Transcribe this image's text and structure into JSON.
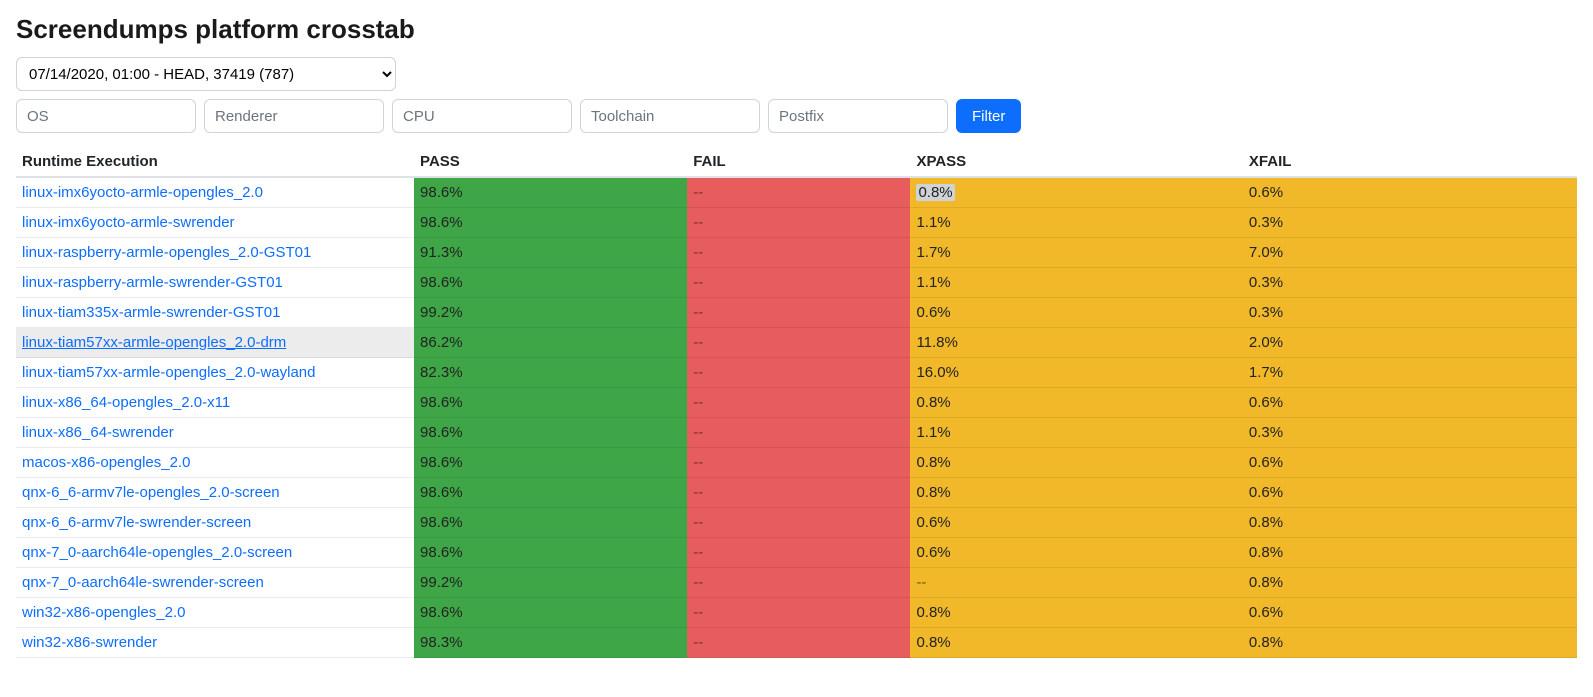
{
  "title": "Screendumps platform crosstab",
  "colors": {
    "pass_bg": "#3fa648",
    "fail_bg": "#e75d5d",
    "xpass_bg": "#f1b92a",
    "xfail_bg": "#f1b92a",
    "link": "#0d6efd",
    "filter_btn_bg": "#0d6efd",
    "text_on_color": "#222222",
    "dash_on_color": "#7a2e2e"
  },
  "build_select": {
    "selected": "07/14/2020, 01:00 - HEAD, 37419 (787)"
  },
  "filters": {
    "os": "",
    "renderer": "",
    "cpu": "",
    "toolchain": "",
    "postfix": ""
  },
  "placeholders": {
    "os": "OS",
    "renderer": "Renderer",
    "cpu": "CPU",
    "toolchain": "Toolchain",
    "postfix": "Postfix"
  },
  "filter_button_label": "Filter",
  "table": {
    "columns": [
      "Runtime Execution",
      "PASS",
      "FAIL",
      "XPASS",
      "XFAIL"
    ],
    "col_bg_keys": [
      null,
      "pass_bg",
      "fail_bg",
      "xpass_bg",
      "xfail_bg"
    ],
    "hovered_row_index": 5,
    "selected_cell": {
      "row": 0,
      "col": 3
    },
    "rows": [
      {
        "runtime": "linux-imx6yocto-armle-opengles_2.0",
        "pass": "98.6%",
        "fail": "--",
        "xpass": "0.8%",
        "xfail": "0.6%"
      },
      {
        "runtime": "linux-imx6yocto-armle-swrender",
        "pass": "98.6%",
        "fail": "--",
        "xpass": "1.1%",
        "xfail": "0.3%"
      },
      {
        "runtime": "linux-raspberry-armle-opengles_2.0-GST01",
        "pass": "91.3%",
        "fail": "--",
        "xpass": "1.7%",
        "xfail": "7.0%"
      },
      {
        "runtime": "linux-raspberry-armle-swrender-GST01",
        "pass": "98.6%",
        "fail": "--",
        "xpass": "1.1%",
        "xfail": "0.3%"
      },
      {
        "runtime": "linux-tiam335x-armle-swrender-GST01",
        "pass": "99.2%",
        "fail": "--",
        "xpass": "0.6%",
        "xfail": "0.3%"
      },
      {
        "runtime": "linux-tiam57xx-armle-opengles_2.0-drm",
        "pass": "86.2%",
        "fail": "--",
        "xpass": "11.8%",
        "xfail": "2.0%"
      },
      {
        "runtime": "linux-tiam57xx-armle-opengles_2.0-wayland",
        "pass": "82.3%",
        "fail": "--",
        "xpass": "16.0%",
        "xfail": "1.7%"
      },
      {
        "runtime": "linux-x86_64-opengles_2.0-x11",
        "pass": "98.6%",
        "fail": "--",
        "xpass": "0.8%",
        "xfail": "0.6%"
      },
      {
        "runtime": "linux-x86_64-swrender",
        "pass": "98.6%",
        "fail": "--",
        "xpass": "1.1%",
        "xfail": "0.3%"
      },
      {
        "runtime": "macos-x86-opengles_2.0",
        "pass": "98.6%",
        "fail": "--",
        "xpass": "0.8%",
        "xfail": "0.6%"
      },
      {
        "runtime": "qnx-6_6-armv7le-opengles_2.0-screen",
        "pass": "98.6%",
        "fail": "--",
        "xpass": "0.8%",
        "xfail": "0.6%"
      },
      {
        "runtime": "qnx-6_6-armv7le-swrender-screen",
        "pass": "98.6%",
        "fail": "--",
        "xpass": "0.6%",
        "xfail": "0.8%"
      },
      {
        "runtime": "qnx-7_0-aarch64le-opengles_2.0-screen",
        "pass": "98.6%",
        "fail": "--",
        "xpass": "0.6%",
        "xfail": "0.8%"
      },
      {
        "runtime": "qnx-7_0-aarch64le-swrender-screen",
        "pass": "99.2%",
        "fail": "--",
        "xpass": "--",
        "xfail": "0.8%"
      },
      {
        "runtime": "win32-x86-opengles_2.0",
        "pass": "98.6%",
        "fail": "--",
        "xpass": "0.8%",
        "xfail": "0.6%"
      },
      {
        "runtime": "win32-x86-swrender",
        "pass": "98.3%",
        "fail": "--",
        "xpass": "0.8%",
        "xfail": "0.8%"
      }
    ]
  }
}
